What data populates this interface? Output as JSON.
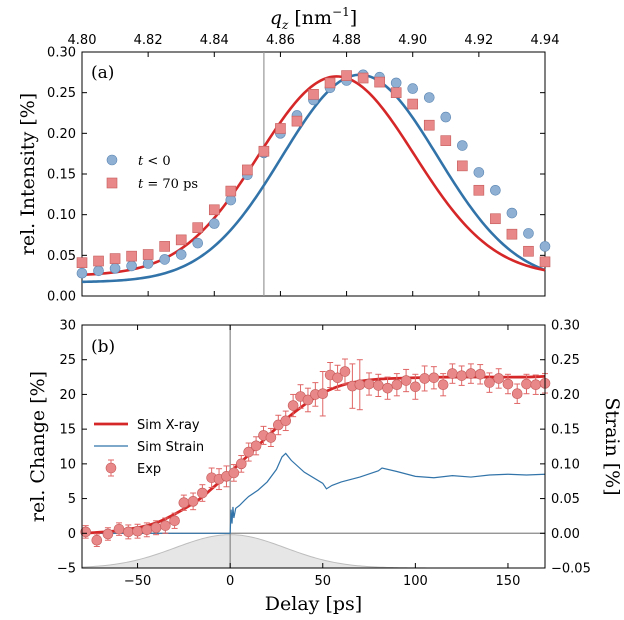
{
  "chart_data": [
    {
      "panel": "(a)",
      "type": "scatter",
      "xlabel": "q_z [nm⁻¹]",
      "xlabel_main": "q",
      "xlabel_sub": "z",
      "xlabel_unit": " [nm",
      "xlabel_sup": "−1",
      "xlabel_close": "]",
      "ylabel": "rel. Intensity [%]",
      "xlim": [
        4.8,
        4.94
      ],
      "ylim": [
        0.0,
        0.3
      ],
      "xticks": [
        "4.80",
        "4.82",
        "4.84",
        "4.86",
        "4.88",
        "4.90",
        "4.92",
        "4.94"
      ],
      "yticks": [
        "0.00",
        "0.05",
        "0.10",
        "0.15",
        "0.20",
        "0.25",
        "0.30"
      ],
      "vline_x": 4.855,
      "colors": {
        "blue": "#3274a9",
        "blue_marker": "#8fb0d3",
        "red": "#d62728",
        "red_marker": "#e98888"
      },
      "series": [
        {
          "name": "t < 0",
          "name_prefix": "t",
          "name_suffix": " < 0",
          "marker": "circle",
          "fit": {
            "amp": 0.255,
            "center": 4.884,
            "sigma": 0.0235,
            "offset": 0.017
          },
          "x": [
            4.8,
            4.805,
            4.81,
            4.815,
            4.82,
            4.825,
            4.83,
            4.835,
            4.84,
            4.845,
            4.85,
            4.855,
            4.86,
            4.865,
            4.87,
            4.875,
            4.88,
            4.885,
            4.89,
            4.895,
            4.9,
            4.905,
            4.91,
            4.915,
            4.92,
            4.925,
            4.93,
            4.935,
            4.94
          ],
          "y": [
            0.028,
            0.031,
            0.034,
            0.037,
            0.04,
            0.045,
            0.051,
            0.065,
            0.089,
            0.118,
            0.149,
            0.176,
            0.2,
            0.222,
            0.241,
            0.256,
            0.265,
            0.272,
            0.269,
            0.262,
            0.255,
            0.244,
            0.22,
            0.185,
            0.152,
            0.13,
            0.102,
            0.077,
            0.061
          ]
        },
        {
          "name": "t = 70 ps",
          "name_prefix": "t",
          "name_suffix": " = 70 ps",
          "marker": "square",
          "fit": {
            "amp": 0.245,
            "center": 4.877,
            "sigma": 0.0235,
            "offset": 0.025
          },
          "x": [
            4.8,
            4.805,
            4.81,
            4.815,
            4.82,
            4.825,
            4.83,
            4.835,
            4.84,
            4.845,
            4.85,
            4.855,
            4.86,
            4.865,
            4.87,
            4.875,
            4.88,
            4.885,
            4.89,
            4.895,
            4.9,
            4.905,
            4.91,
            4.915,
            4.92,
            4.925,
            4.93,
            4.935,
            4.94
          ],
          "y": [
            0.041,
            0.043,
            0.046,
            0.049,
            0.051,
            0.061,
            0.069,
            0.084,
            0.106,
            0.129,
            0.155,
            0.178,
            0.206,
            0.215,
            0.248,
            0.262,
            0.271,
            0.268,
            0.263,
            0.25,
            0.236,
            0.21,
            0.191,
            0.16,
            0.13,
            0.095,
            0.076,
            0.055,
            0.042
          ]
        }
      ]
    },
    {
      "panel": "(b)",
      "type": "line",
      "xlabel": "Delay [ps]",
      "ylabel": "rel. Change [%]",
      "ylabel_right": "Strain [%]",
      "xlim": [
        -80,
        170
      ],
      "ylim": [
        -5,
        30
      ],
      "ylim_right": [
        -0.05,
        0.3
      ],
      "xticks": [
        "−50",
        "0",
        "50",
        "100",
        "150"
      ],
      "xtick_values": [
        -50,
        0,
        50,
        100,
        150
      ],
      "yticks": [
        "−5",
        "0",
        "5",
        "10",
        "15",
        "20",
        "25",
        "30"
      ],
      "ytick_values": [
        -5,
        0,
        5,
        10,
        15,
        20,
        25,
        30
      ],
      "yticks_right": [
        "−0.05",
        "0.00",
        "0.05",
        "0.10",
        "0.15",
        "0.20",
        "0.25",
        "0.30"
      ],
      "legend": [
        "Sim X-ray",
        "Sim Strain",
        "Exp"
      ],
      "colors": {
        "xray": "#d62728",
        "strain": "#3274a9",
        "exp": "#e98888",
        "gauss": "#e6e6e6"
      },
      "sim_xray": {
        "x": [
          -80,
          -60,
          -40,
          -20,
          -10,
          0,
          10,
          20,
          30,
          40,
          50,
          60,
          70,
          80,
          100,
          120,
          140,
          160,
          170
        ],
        "y": [
          0.0,
          0.4,
          1.5,
          4.3,
          6.4,
          8.8,
          11.3,
          13.9,
          16.4,
          18.5,
          20.2,
          21.3,
          21.9,
          22.2,
          22.4,
          22.5,
          22.5,
          22.5,
          22.6
        ]
      },
      "sim_strain": {
        "x": [
          -80,
          0,
          0.5,
          1,
          1.5,
          2,
          3,
          5,
          8,
          10,
          15,
          20,
          25,
          28,
          30,
          33,
          40,
          50,
          52,
          55,
          60,
          70,
          80,
          82,
          90,
          100,
          110,
          120,
          130,
          140,
          150,
          160,
          170
        ],
        "y": [
          0.0,
          0.0,
          0.034,
          0.014,
          0.038,
          0.022,
          0.036,
          0.04,
          0.048,
          0.053,
          0.062,
          0.074,
          0.092,
          0.11,
          0.115,
          0.105,
          0.088,
          0.072,
          0.064,
          0.069,
          0.074,
          0.081,
          0.09,
          0.094,
          0.089,
          0.082,
          0.08,
          0.083,
          0.081,
          0.084,
          0.085,
          0.084,
          0.085
        ]
      },
      "exp": {
        "x": [
          -78,
          -72,
          -66,
          -60,
          -55,
          -50,
          -45,
          -40,
          -35,
          -30,
          -25,
          -20,
          -15,
          -10,
          -6,
          -2,
          2,
          6,
          10,
          14,
          18,
          22,
          26,
          30,
          34,
          38,
          42,
          46,
          50,
          54,
          58,
          62,
          66,
          70,
          75,
          80,
          85,
          90,
          95,
          100,
          105,
          110,
          115,
          120,
          125,
          130,
          135,
          140,
          145,
          150,
          155,
          160,
          165,
          170
        ],
        "y": [
          0.2,
          -1.0,
          -0.1,
          0.6,
          0.2,
          0.3,
          0.5,
          0.8,
          1.1,
          1.8,
          4.4,
          4.6,
          5.8,
          8.0,
          7.8,
          8.2,
          8.7,
          10.0,
          11.7,
          12.6,
          14.1,
          13.8,
          15.6,
          16.2,
          18.4,
          19.7,
          19.2,
          20.0,
          20.1,
          22.8,
          22.4,
          23.3,
          21.2,
          21.4,
          21.5,
          21.3,
          20.9,
          21.4,
          22.0,
          21.1,
          22.3,
          22.4,
          21.4,
          23.0,
          22.7,
          23.0,
          22.9,
          21.7,
          22.3,
          21.5,
          20.1,
          21.5,
          21.4,
          21.6
        ],
        "err": [
          0.9,
          0.9,
          0.9,
          0.9,
          1.0,
          1.0,
          1.0,
          1.0,
          1.1,
          1.1,
          1.1,
          1.2,
          1.2,
          1.4,
          1.5,
          1.5,
          1.2,
          1.2,
          1.3,
          1.3,
          1.3,
          1.3,
          1.4,
          1.4,
          1.6,
          1.7,
          1.7,
          1.7,
          3.2,
          1.8,
          1.8,
          1.8,
          3.2,
          3.6,
          1.6,
          1.6,
          1.6,
          1.6,
          1.6,
          1.8,
          1.8,
          1.6,
          1.6,
          1.4,
          1.4,
          1.4,
          1.4,
          1.4,
          1.4,
          1.4,
          1.4,
          1.4,
          1.4,
          1.4
        ]
      },
      "gauss_fill": {
        "center": 0,
        "fwhm": 70,
        "peak_strain": -0.002
      }
    }
  ]
}
